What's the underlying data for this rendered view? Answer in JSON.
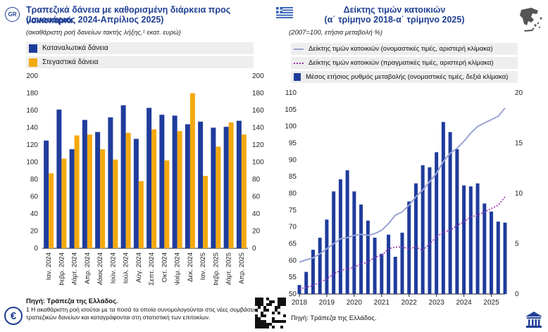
{
  "badge": "GR",
  "left": {
    "title": "Τραπεζικά δάνεια με καθορισμένη διάρκεια προς νοικοκυριά",
    "subtitle": "(Ιανουάριος 2024-Απρίλιος 2025)",
    "note": "(ακαθάριστη ροή δανείων τακτής λήξης,¹ εκατ. ευρώ)",
    "source": "Πηγή: Τράπεζα της Ελλάδος.",
    "footnote_1": "1 Η ακαθάριστη ροή ισούται με τα ποσά τα οποία συνομολογούνται  στις νέες συμβάσεις",
    "footnote_2": "τραπεζικών δανείων και καταγράφονται στη στατιστική των επιτοκίων."
  },
  "right": {
    "title": "Δείκτης τιμών κατοικιών",
    "subtitle": "(α΄ τρίμηνο 2018-α΄ τρίμηνο 2025)",
    "note": "(2007=100, ετήσια μεταβολή %)",
    "source": "Πηγή: Τράπεζα της Ελλάδος."
  },
  "colors": {
    "consumer": "#1f3c9c",
    "housing": "#f4a90f",
    "nominal": "#9aa3d4",
    "real": "#9a2fb0",
    "bars": "#1f3c9c",
    "title": "#1f3f94"
  },
  "chart_data": [
    {
      "type": "bar",
      "categories": [
        "Ιαν. 2024",
        "Φεβρ. 2024",
        "Μάρτ. 2024",
        "Απρ. 2024",
        "Μάιος 2024",
        "Ιούν. 2024",
        "Ιούλ. 2024",
        "Αύγ. 2024",
        "Σεπτ. 2024",
        "Οκτ. 2024",
        "Νοέμ. 2024",
        "Δεκ. 2024",
        "Ιαν. 2025",
        "Φεβρ. 2025",
        "Μάρτ. 2025",
        "Απρ. 2025"
      ],
      "series": [
        {
          "name": "Καταναλωτικά δάνεια",
          "values": [
            125,
            161,
            115,
            149,
            135,
            152,
            166,
            127,
            163,
            155,
            154,
            144,
            147,
            140,
            141,
            148
          ]
        },
        {
          "name": "Στεγαστικά δάνεια",
          "values": [
            87,
            104,
            131,
            132,
            115,
            103,
            134,
            78,
            138,
            102,
            136,
            180,
            84,
            118,
            146,
            132
          ]
        }
      ],
      "ylim": [
        0,
        200
      ],
      "yticks": [
        0,
        20,
        40,
        60,
        80,
        100,
        120,
        140,
        160,
        180,
        200
      ],
      "legend": "top-left",
      "grid": false
    },
    {
      "type": "line",
      "x_labels": [
        "2018",
        "2019",
        "2020",
        "2021",
        "2022",
        "2023",
        "2024",
        "2025"
      ],
      "left_ylim": [
        50,
        110
      ],
      "left_yticks": [
        50,
        55,
        60,
        65,
        70,
        75,
        80,
        85,
        90,
        95,
        100,
        105,
        110
      ],
      "right_ylim": [
        0,
        20
      ],
      "right_yticks": [
        0,
        5,
        10,
        15,
        20
      ],
      "legend": "top",
      "series": [
        {
          "name": "Δείκτης τιμών κατοικιών (ονομαστικές τιμές, αριστερή κλίμακα)",
          "axis": "left",
          "values": [
            59.5,
            60.2,
            60.8,
            62.0,
            63.5,
            65.0,
            66.5,
            66.8,
            67.5,
            67.8,
            67.5,
            68.0,
            69.0,
            71.0,
            73.5,
            74.5,
            76.5,
            79.0,
            81.0,
            83.5,
            86.0,
            89.5,
            92.0,
            93.5,
            95.5,
            98.0,
            100.0,
            101.0,
            102.0,
            103.0,
            105.5
          ]
        },
        {
          "name": "Δείκτης τιμών κατοικιών (πραγματικές τιμές, αριστερή κλίμακα)",
          "axis": "left",
          "values": [
            51.5,
            52.0,
            52.5,
            53.5,
            54.5,
            56.0,
            57.0,
            57.5,
            58.0,
            59.0,
            59.5,
            61.0,
            61.5,
            63.5,
            64.0,
            64.0,
            63.5,
            64.0,
            63.0,
            65.0,
            67.0,
            68.5,
            69.0,
            70.5,
            71.5,
            73.0,
            73.5,
            74.5,
            75.5,
            76.5,
            79.0
          ]
        },
        {
          "name": "Μέσος ετήσιος ρυθμός μεταβολής (ονομαστικές τιμές, δεξιά κλίμακα)",
          "axis": "right",
          "type": "bar",
          "values": [
            0.9,
            2.2,
            4.4,
            5.6,
            7.4,
            10.2,
            11.4,
            12.3,
            10.2,
            8.9,
            7.3,
            5.6,
            4.0,
            5.9,
            3.7,
            6.1,
            9.2,
            11.0,
            12.8,
            12.6,
            14.1,
            17.1,
            16.1,
            14.4,
            10.8,
            10.7,
            11.0,
            9.0,
            8.2,
            7.2,
            7.1
          ]
        }
      ]
    }
  ]
}
